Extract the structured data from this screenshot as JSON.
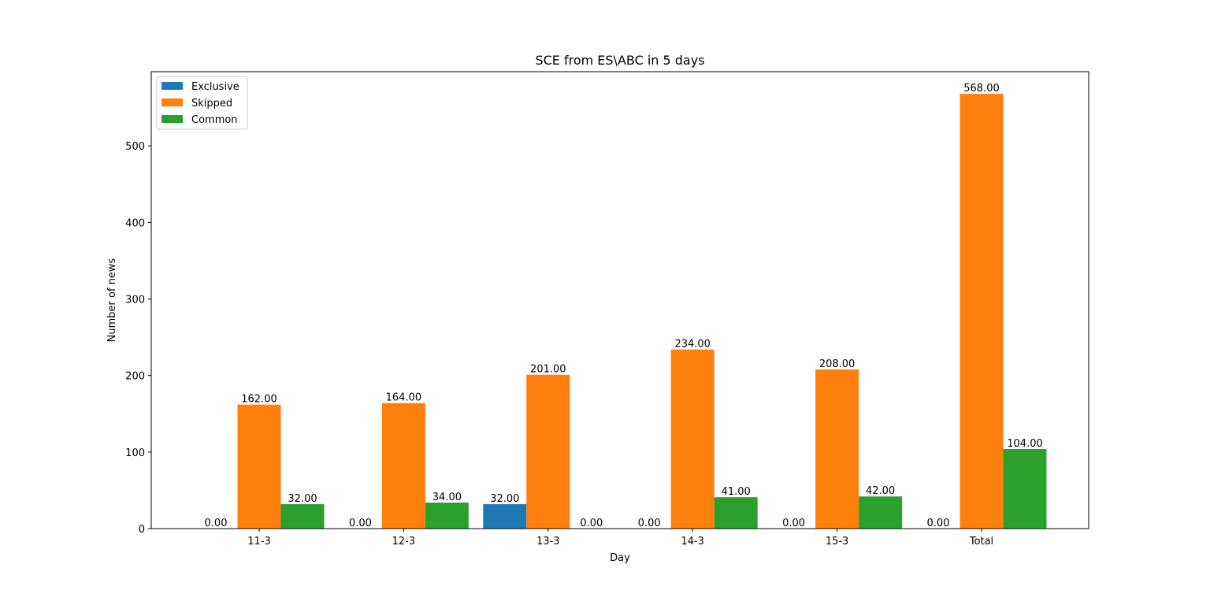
{
  "chart_data": {
    "type": "bar",
    "title": "SCE from ES\\ABC in 5 days",
    "xlabel": "Day",
    "ylabel": "Number of news",
    "categories": [
      "11-3",
      "12-3",
      "13-3",
      "14-3",
      "15-3",
      "Total"
    ],
    "series": [
      {
        "name": "Exclusive",
        "color": "#1f77b4",
        "values": [
          0,
          0,
          32,
          0,
          0,
          0
        ],
        "labels": [
          "0.00",
          "0.00",
          "32.00",
          "0.00",
          "0.00",
          "0.00"
        ]
      },
      {
        "name": "Skipped",
        "color": "#ff7f0e",
        "values": [
          162,
          164,
          201,
          234,
          208,
          568
        ],
        "labels": [
          "162.00",
          "164.00",
          "201.00",
          "234.00",
          "208.00",
          "568.00"
        ]
      },
      {
        "name": "Common",
        "color": "#2ca02c",
        "values": [
          32,
          34,
          0,
          41,
          42,
          104
        ],
        "labels": [
          "32.00",
          "34.00",
          "0.00",
          "41.00",
          "42.00",
          "104.00"
        ]
      }
    ],
    "ylim": [
      0,
      597
    ],
    "yticks": [
      0,
      100,
      200,
      300,
      400,
      500
    ],
    "ytick_labels": [
      "0",
      "100",
      "200",
      "300",
      "400",
      "500"
    ],
    "grid": false,
    "legend_position": "top-left"
  }
}
